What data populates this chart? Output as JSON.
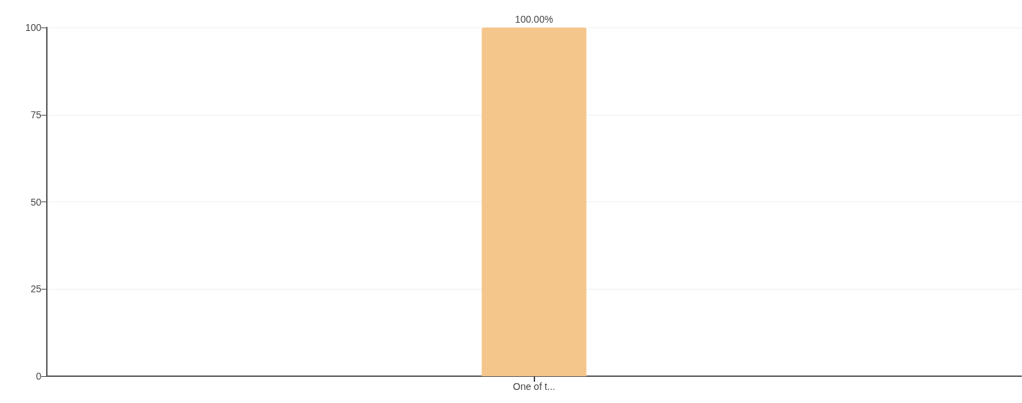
{
  "chart_data": {
    "type": "bar",
    "categories": [
      "One of t..."
    ],
    "values": [
      100
    ],
    "value_labels": [
      "100.00%"
    ],
    "color": "#f4c68c",
    "ylim": [
      0,
      100
    ],
    "yticks": [
      0,
      25,
      50,
      75,
      100
    ],
    "grid": "y"
  }
}
